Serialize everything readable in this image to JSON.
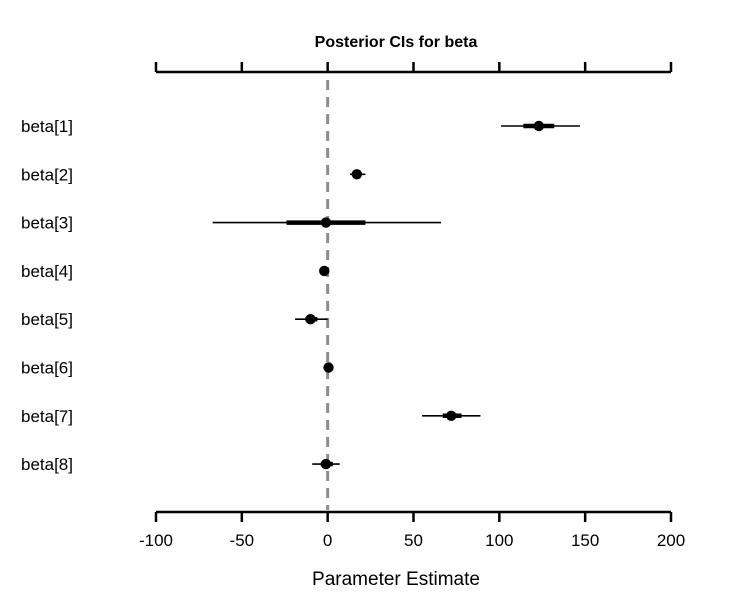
{
  "chart_data": {
    "type": "interval",
    "title": "Posterior CIs for beta",
    "xlabel": "Parameter Estimate",
    "ylabel": "",
    "xlim": [
      -100,
      200
    ],
    "xticks": [
      -100,
      -50,
      0,
      50,
      100,
      150,
      200
    ],
    "reference_line": 0,
    "grid": false,
    "colors": {
      "point": "#000000",
      "interval": "#000000",
      "reference": "#8c8c8c",
      "axis": "#000000"
    },
    "parameters": [
      {
        "label": "beta[1]",
        "estimate": 123,
        "inner": [
          114,
          132
        ],
        "outer": [
          101,
          147
        ]
      },
      {
        "label": "beta[2]",
        "estimate": 17,
        "inner": [
          15,
          19
        ],
        "outer": [
          13,
          22
        ]
      },
      {
        "label": "beta[3]",
        "estimate": -1,
        "inner": [
          -24,
          22
        ],
        "outer": [
          -67,
          66
        ]
      },
      {
        "label": "beta[4]",
        "estimate": -2,
        "inner": [
          -2.5,
          -1.5
        ],
        "outer": [
          -3,
          -1
        ]
      },
      {
        "label": "beta[5]",
        "estimate": -10,
        "inner": [
          -13,
          -6
        ],
        "outer": [
          -19,
          0
        ]
      },
      {
        "label": "beta[6]",
        "estimate": 0.5,
        "inner": [
          0,
          1
        ],
        "outer": [
          -0.5,
          1.5
        ]
      },
      {
        "label": "beta[7]",
        "estimate": 72,
        "inner": [
          67,
          78
        ],
        "outer": [
          55,
          89
        ]
      },
      {
        "label": "beta[8]",
        "estimate": -1,
        "inner": [
          -4,
          3
        ],
        "outer": [
          -9,
          7
        ]
      }
    ]
  }
}
